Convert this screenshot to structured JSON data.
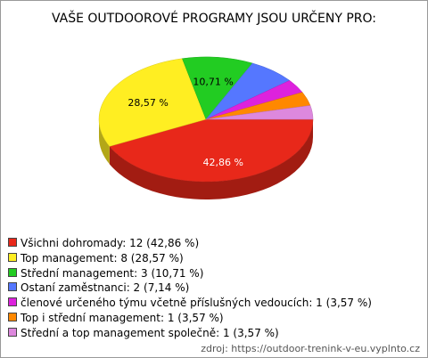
{
  "chart_data": {
    "type": "pie",
    "title": "VAŠE OUTDOOROVÉ PROGRAMY JSOU URČENY PRO:",
    "categories": [
      "Všichni dohromady",
      "Top management",
      "Střední management",
      "Ostaní zaměstnanci",
      "členové určeného týmu včetně příslušných vedoucích",
      "Top i střední management",
      "Střední a top management společně"
    ],
    "values": [
      42.86,
      28.57,
      10.71,
      7.14,
      3.57,
      3.57,
      3.57
    ],
    "value_labels": [
      "42,86 %",
      "28,57 %",
      "10,71 %",
      "7,14 %",
      "3,57 %",
      "3,57 %",
      "3,57 %"
    ],
    "counts": [
      12,
      8,
      3,
      2,
      1,
      1,
      1
    ],
    "colors": [
      "#e8281a",
      "#ffee22",
      "#22cc22",
      "#5577ff",
      "#dd22dd",
      "#ff8800",
      "#dd88dd"
    ],
    "source": "zdroj: https://outdoor-trenink-v-eu.vyplnto.cz"
  }
}
